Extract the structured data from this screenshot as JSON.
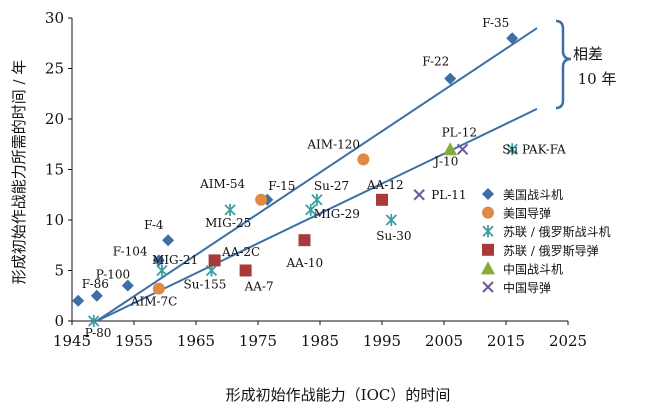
{
  "chart_data": {
    "type": "scatter",
    "title": "",
    "xlabel": "形成初始作战能力（IOC）的时间",
    "ylabel": "形成初始作战能力所需的时间 / 年",
    "xlim": [
      1945,
      2025
    ],
    "ylim": [
      0,
      30
    ],
    "xticks": [
      1945,
      1955,
      1965,
      1975,
      1985,
      1995,
      2005,
      2015,
      2025
    ],
    "yticks": [
      0,
      5,
      10,
      15,
      20,
      25,
      30
    ],
    "grid": false,
    "legend_position": "right",
    "series": [
      {
        "name": "美国战斗机",
        "marker": "diamond",
        "color": "#3d6fa5",
        "points": [
          {
            "x": 1946,
            "y": 2,
            "label": ""
          },
          {
            "x": 1949,
            "y": 2.5,
            "label": "F-86"
          },
          {
            "x": 1954,
            "y": 3.5,
            "label": "P-100"
          },
          {
            "x": 1959,
            "y": 6,
            "label": "F-104"
          },
          {
            "x": 1960.5,
            "y": 8,
            "label": "F-4"
          },
          {
            "x": 1976.5,
            "y": 12,
            "label": "F-15"
          },
          {
            "x": 2006,
            "y": 24,
            "label": "F-22"
          },
          {
            "x": 2016,
            "y": 28,
            "label": "F-35"
          }
        ]
      },
      {
        "name": "美国导弹",
        "marker": "circle",
        "color": "#dd8a44",
        "points": [
          {
            "x": 1959,
            "y": 3.2,
            "label": "AIM-7C"
          },
          {
            "x": 1975.5,
            "y": 12,
            "label": "AIM-54"
          },
          {
            "x": 1992,
            "y": 16,
            "label": "AIM-120"
          }
        ]
      },
      {
        "name": "苏联 / 俄罗斯战斗机",
        "marker": "asterisk",
        "color": "#3a9ea0",
        "points": [
          {
            "x": 1948.5,
            "y": 0,
            "label": "P-80"
          },
          {
            "x": 1959.5,
            "y": 5,
            "label": ""
          },
          {
            "x": 1967.5,
            "y": 5,
            "label": "Su-155"
          },
          {
            "x": 1970.5,
            "y": 11,
            "label": "MIG-25"
          },
          {
            "x": 1983.5,
            "y": 11,
            "label": "MIG-29"
          },
          {
            "x": 1984.5,
            "y": 12,
            "label": "Su-27"
          },
          {
            "x": 1996.5,
            "y": 10,
            "label": "Su-30"
          },
          {
            "x": 2016,
            "y": 17,
            "label": "Su PAK-FA"
          }
        ]
      },
      {
        "name": "苏联 / 俄罗斯导弹",
        "marker": "square",
        "color": "#a83a3a",
        "points": [
          {
            "x": 1968,
            "y": 6,
            "label": ""
          },
          {
            "x": 1973,
            "y": 5,
            "label": "AA-7"
          },
          {
            "x": 1982.5,
            "y": 8,
            "label": "AA-10"
          },
          {
            "x": 1995,
            "y": 12,
            "label": "AA-12"
          }
        ]
      },
      {
        "name": "中国战斗机",
        "marker": "triangle",
        "color": "#8aab3c",
        "points": [
          {
            "x": 2006,
            "y": 17,
            "label": "J-10"
          }
        ]
      },
      {
        "name": "中国导弹",
        "marker": "x",
        "color": "#6c5a9c",
        "points": [
          {
            "x": 2001,
            "y": 12.5,
            "label": "PL-11"
          },
          {
            "x": 2008,
            "y": 17,
            "label": "PL-12"
          }
        ]
      }
    ],
    "annotations": {
      "point_labels": [
        "MIG-21",
        "AA-2C"
      ],
      "brace_line1": "相差",
      "brace_line2": "10 年"
    },
    "trend_lines": [
      {
        "x": [
          1949,
          2020
        ],
        "y": [
          0,
          29
        ]
      },
      {
        "x": [
          1949,
          2020
        ],
        "y": [
          0,
          21
        ]
      }
    ]
  }
}
